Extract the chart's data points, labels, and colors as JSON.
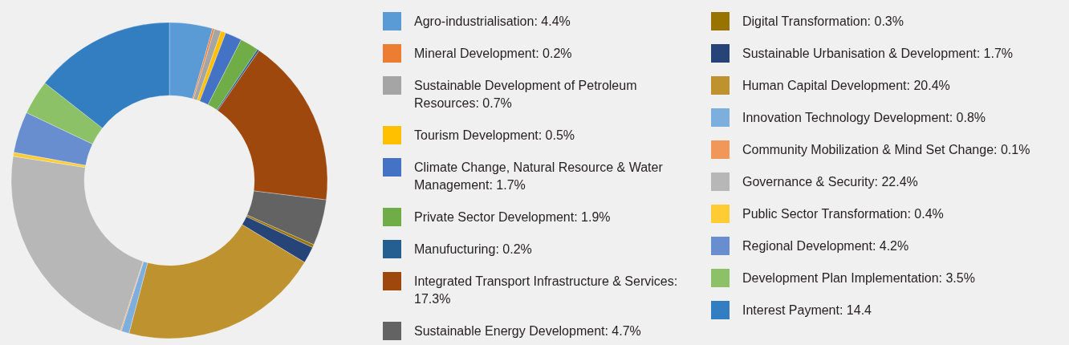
{
  "chart_data": {
    "type": "donut",
    "categories": [
      "Agro-industrialisation: 4.4%",
      "Mineral Development: 0.2%",
      "Sustainable Development of Petroleum Resources: 0.7%",
      "Tourism Development: 0.5%",
      "Climate Change, Natural Resource & Water Management: 1.7%",
      "Private Sector Development: 1.9%",
      "Manufucturing: 0.2%",
      "Integrated Transport Infrastructure & Services: 17.3%",
      "Sustainable Energy Development: 4.7%",
      "Digital Transformation: 0.3%",
      "Sustainable Urbanisation & Development:  1.7%",
      "Human Capital Development: 20.4%",
      "Innovation Technology Development: 0.8%",
      "Community Mobilization & Mind Set Change: 0.1%",
      "Governance & Security: 22.4%",
      "Public Sector Transformation: 0.4%",
      "Regional Development: 4.2%",
      "Development Plan Implementation: 3.5%",
      "Interest Payment: 14.4"
    ],
    "values": [
      4.4,
      0.2,
      0.7,
      0.5,
      1.7,
      1.9,
      0.2,
      17.3,
      4.7,
      0.3,
      1.7,
      20.4,
      0.8,
      0.1,
      22.4,
      0.4,
      4.2,
      3.5,
      14.4
    ],
    "colors": [
      "#5b9bd5",
      "#ed7d31",
      "#a5a5a5",
      "#ffc000",
      "#4472c4",
      "#70ad47",
      "#255e91",
      "#9e480e",
      "#636363",
      "#997300",
      "#264478",
      "#bd922f",
      "#7cafdd",
      "#f1975a",
      "#b7b7b7",
      "#ffcd33",
      "#698ed0",
      "#8cc168",
      "#337ec1"
    ],
    "legend": "right"
  }
}
